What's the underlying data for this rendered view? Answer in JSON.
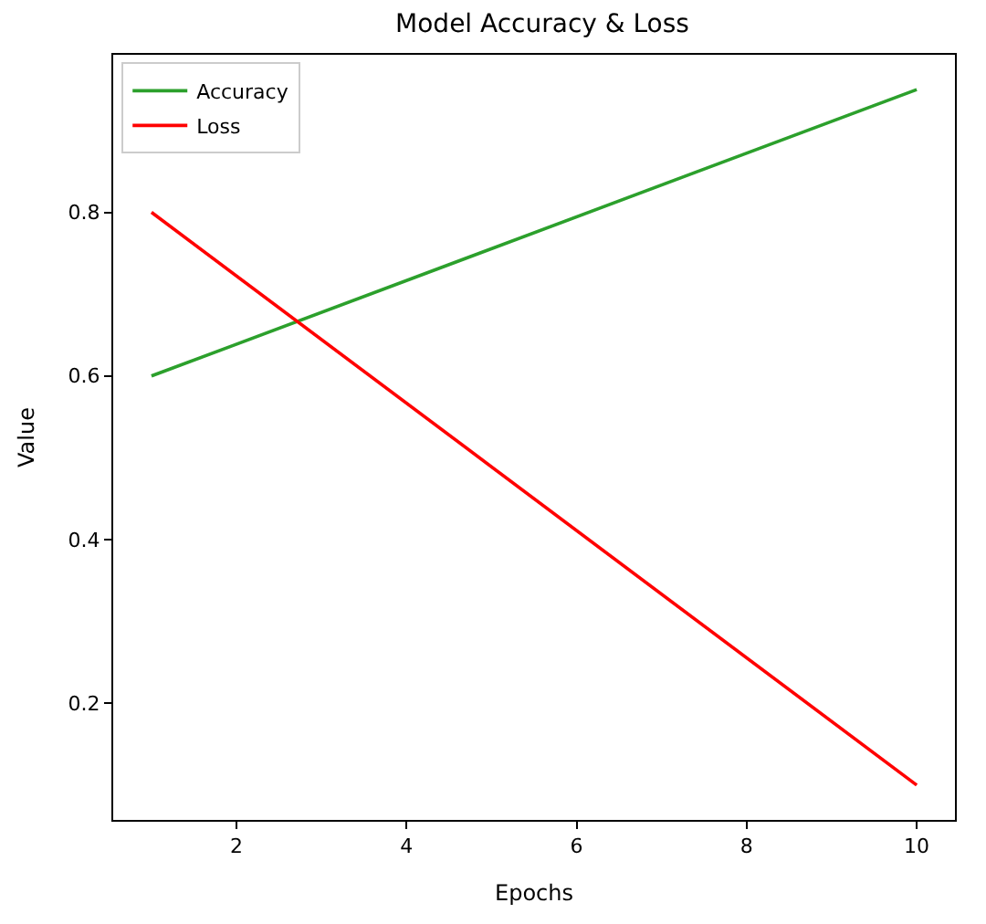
{
  "chart_data": {
    "type": "line",
    "title": "Model Accuracy & Loss",
    "xlabel": "Epochs",
    "ylabel": "Value",
    "series": [
      {
        "name": "Accuracy",
        "color": "#2ca02c",
        "values": [
          0.6,
          0.95
        ]
      },
      {
        "name": "Loss",
        "color": "#ff0000",
        "values": [
          0.8,
          0.1
        ]
      }
    ],
    "x": [
      1,
      10
    ],
    "xlim": [
      0.55,
      10.45
    ],
    "xticks": [
      2,
      4,
      6,
      8,
      10
    ],
    "ylim": [
      0.0575,
      0.9925
    ],
    "yticks": [
      0.2,
      0.4,
      0.6,
      0.8
    ],
    "legend": "top left",
    "marker": "none",
    "line_style": "solid"
  }
}
